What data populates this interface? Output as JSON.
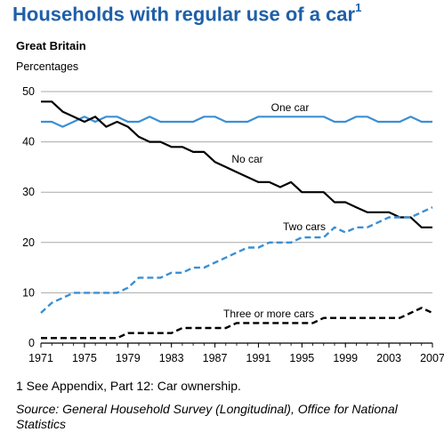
{
  "title": "Households with regular use of a car",
  "title_footnote_marker": "1",
  "subtitle": "Great Britain",
  "unit_label": "Percentages",
  "footnote": "1  See Appendix, Part 12: Car ownership.",
  "source": "Source: General Household Survey (Longitudinal), Office for National Statistics",
  "chart_data": {
    "type": "line",
    "title": "Households with regular use of a car",
    "xlabel": "",
    "ylabel": "Percentages",
    "xlim": [
      1971,
      2007
    ],
    "ylim": [
      0,
      50
    ],
    "x_ticks": [
      "1971",
      "1975",
      "1979",
      "1983",
      "1987",
      "1991",
      "1995",
      "1999",
      "2003",
      "2007"
    ],
    "y_ticks": [
      "0",
      "10",
      "20",
      "30",
      "40",
      "50"
    ],
    "grid": "horizontal",
    "x": [
      1971,
      1972,
      1973,
      1974,
      1975,
      1976,
      1977,
      1978,
      1979,
      1980,
      1981,
      1982,
      1983,
      1984,
      1985,
      1986,
      1987,
      1988,
      1989,
      1990,
      1991,
      1992,
      1993,
      1994,
      1995,
      1996,
      1997,
      1998,
      1999,
      2000,
      2001,
      2002,
      2003,
      2004,
      2005,
      2006,
      2007
    ],
    "series": [
      {
        "name": "One car",
        "color": "#3b8fd4",
        "style": "solid",
        "values": [
          44,
          44,
          43,
          44,
          45,
          44,
          45,
          45,
          44,
          44,
          45,
          44,
          44,
          44,
          44,
          45,
          45,
          44,
          44,
          44,
          45,
          45,
          45,
          45,
          45,
          45,
          45,
          44,
          44,
          45,
          45,
          44,
          44,
          44,
          45,
          44,
          44
        ]
      },
      {
        "name": "No car",
        "color": "#000000",
        "style": "solid",
        "values": [
          48,
          48,
          46,
          45,
          44,
          45,
          43,
          44,
          43,
          41,
          40,
          40,
          39,
          39,
          38,
          38,
          36,
          35,
          34,
          33,
          32,
          32,
          31,
          32,
          30,
          30,
          30,
          28,
          28,
          27,
          26,
          26,
          26,
          25,
          25,
          23,
          23
        ]
      },
      {
        "name": "Two cars",
        "color": "#3b8fd4",
        "style": "dashed",
        "values": [
          6,
          8,
          9,
          10,
          10,
          10,
          10,
          10,
          11,
          13,
          13,
          13,
          14,
          14,
          15,
          15,
          16,
          17,
          18,
          19,
          19,
          20,
          20,
          20,
          21,
          21,
          21,
          23,
          22,
          23,
          23,
          24,
          25,
          25,
          25,
          26,
          27
        ]
      },
      {
        "name": "Three or more cars",
        "color": "#000000",
        "style": "dashed",
        "values": [
          1,
          1,
          1,
          1,
          1,
          1,
          1,
          1,
          2,
          2,
          2,
          2,
          2,
          3,
          3,
          3,
          3,
          3,
          4,
          4,
          4,
          4,
          4,
          4,
          4,
          4,
          5,
          5,
          5,
          5,
          5,
          5,
          5,
          5,
          6,
          7,
          6
        ]
      }
    ]
  }
}
